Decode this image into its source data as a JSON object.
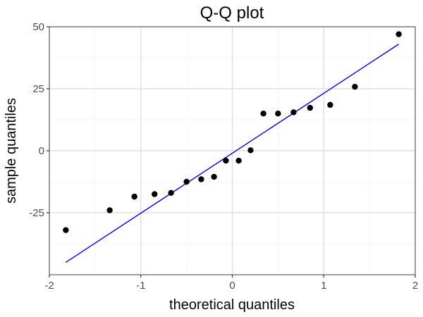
{
  "chart_data": {
    "type": "scatter",
    "title": "Q-Q plot",
    "xlabel": "theoretical quantiles",
    "ylabel": "sample quantiles",
    "xlim": [
      -2,
      2
    ],
    "ylim": [
      -50,
      50
    ],
    "x_ticks": [
      -2,
      -1,
      0,
      1,
      2
    ],
    "x_tick_labels": [
      "-2",
      "-1",
      "0",
      "1",
      "2"
    ],
    "y_ticks": [
      -25,
      0,
      25,
      50
    ],
    "y_tick_labels": [
      "-25",
      "0",
      "25",
      "50"
    ],
    "grid": true,
    "points": [
      {
        "x": -1.82,
        "y": -32
      },
      {
        "x": -1.34,
        "y": -24
      },
      {
        "x": -1.07,
        "y": -18.5
      },
      {
        "x": -0.85,
        "y": -17.5
      },
      {
        "x": -0.67,
        "y": -17
      },
      {
        "x": -0.5,
        "y": -12.5
      },
      {
        "x": -0.34,
        "y": -11.5
      },
      {
        "x": -0.2,
        "y": -10.5
      },
      {
        "x": -0.07,
        "y": -4
      },
      {
        "x": 0.07,
        "y": -4
      },
      {
        "x": 0.2,
        "y": 0.2
      },
      {
        "x": 0.34,
        "y": 15
      },
      {
        "x": 0.5,
        "y": 15
      },
      {
        "x": 0.67,
        "y": 15.5
      },
      {
        "x": 0.85,
        "y": 17.3
      },
      {
        "x": 1.07,
        "y": 18.5
      },
      {
        "x": 1.34,
        "y": 25.8
      },
      {
        "x": 1.82,
        "y": 47
      }
    ],
    "reference_line": {
      "x1": -1.82,
      "y1": -45,
      "x2": 1.82,
      "y2": 43
    },
    "colors": {
      "points": "#000000",
      "reference_line": "#0000ff",
      "grid_major": "#e0e0e0",
      "grid_minor": "#f2f2f2",
      "panel_border": "#7f7f7f"
    }
  }
}
